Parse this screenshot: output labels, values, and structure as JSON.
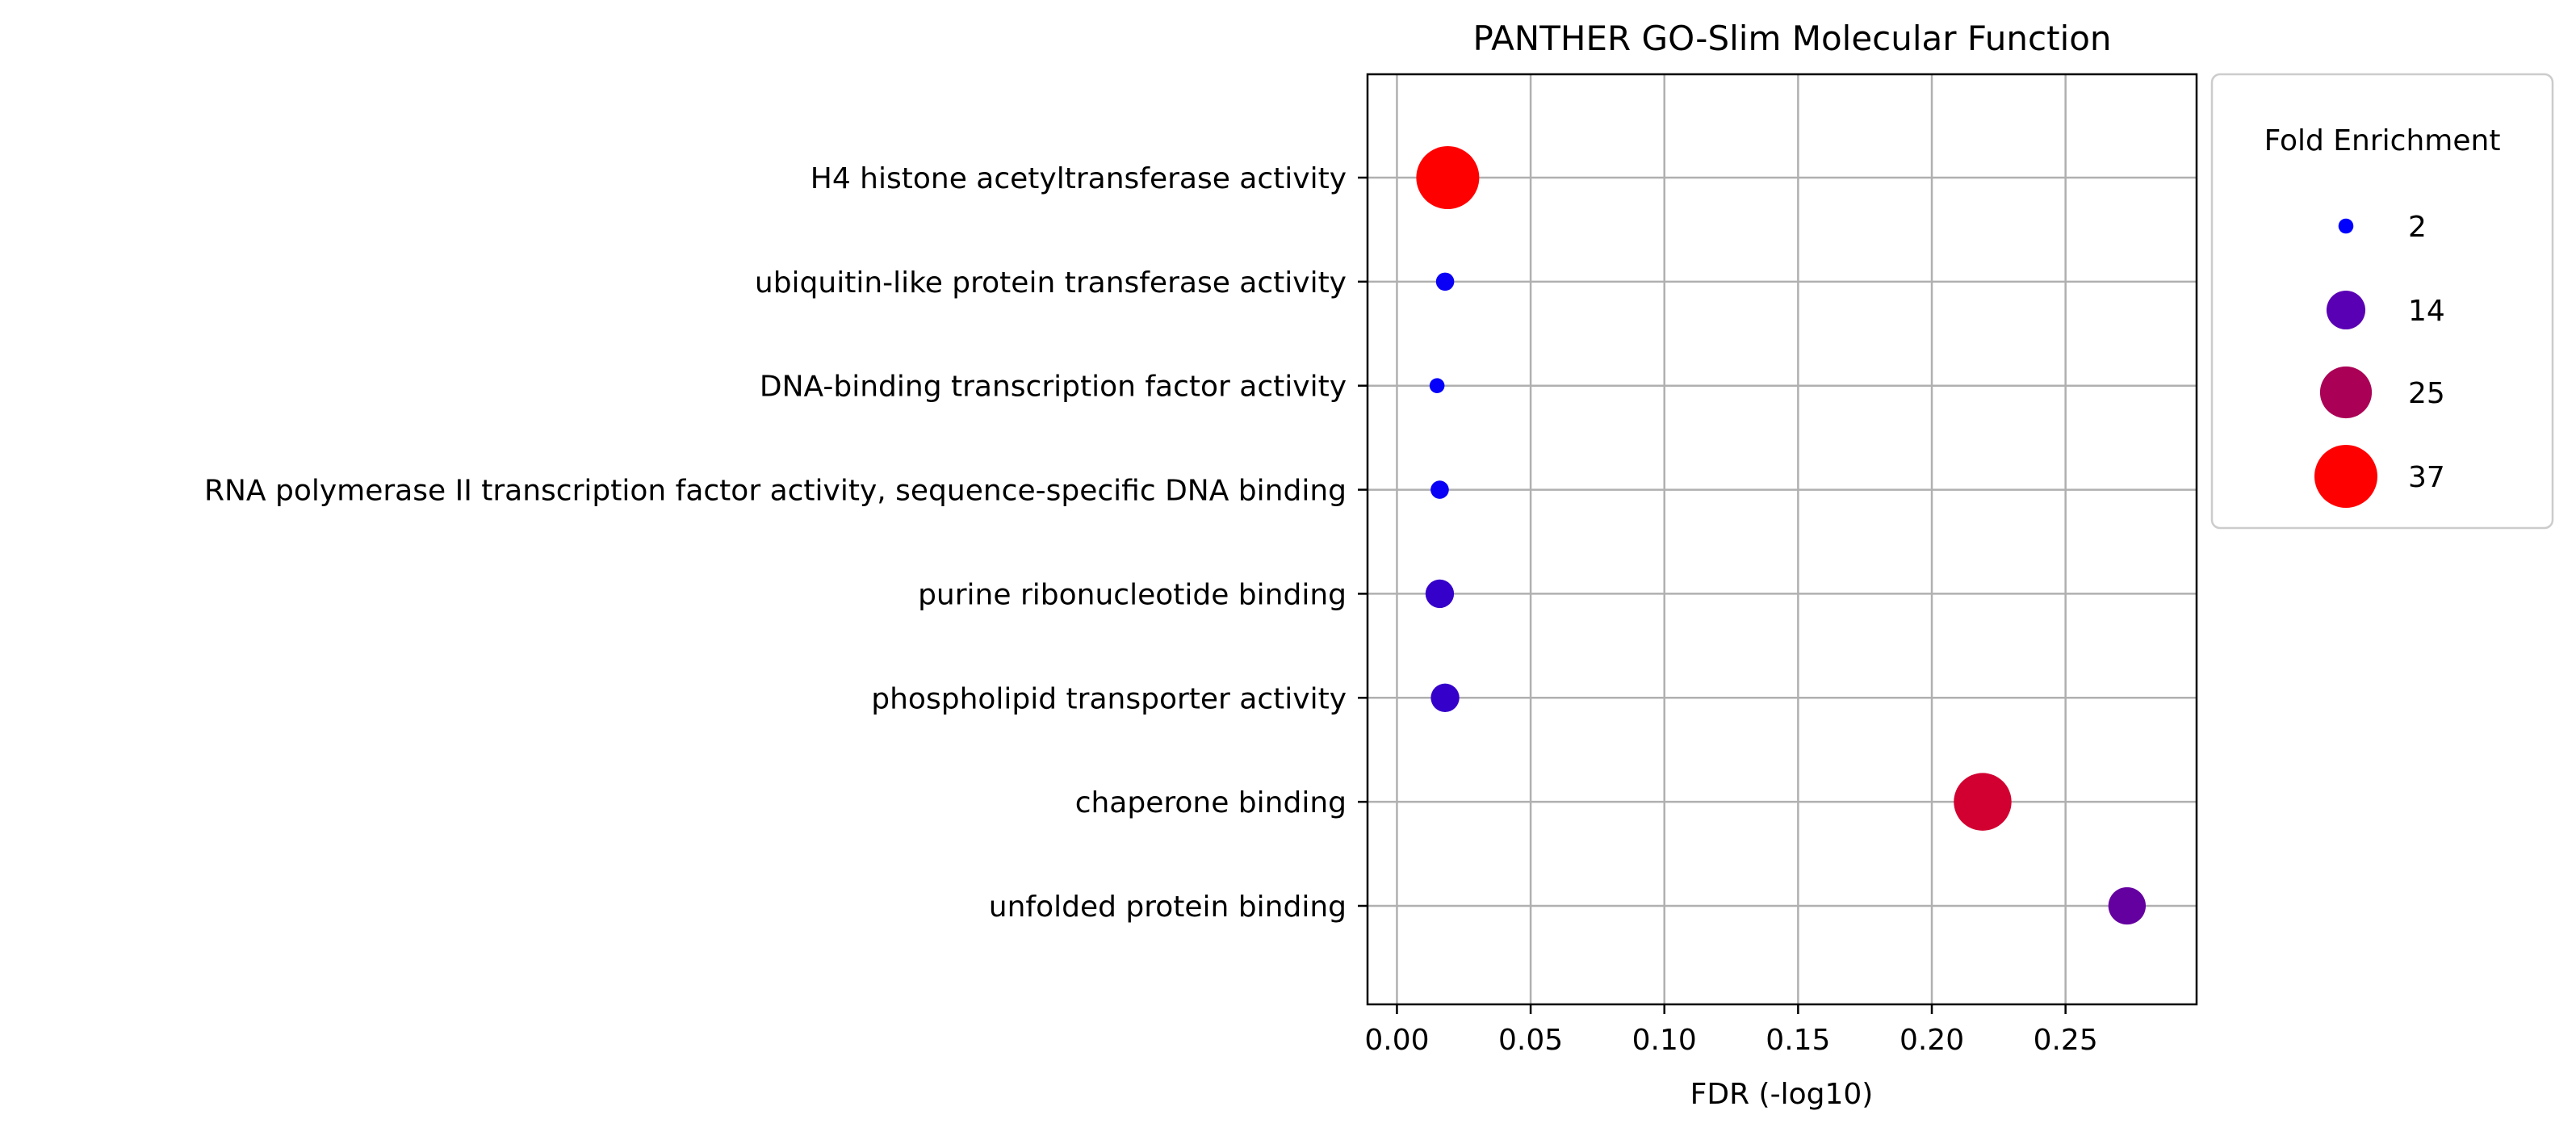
{
  "chart_data": {
    "type": "scatter",
    "title": "PANTHER GO-Slim Molecular Function",
    "xlabel": "FDR (-log10)",
    "ylabel": "",
    "xlim": [
      -0.011,
      0.299
    ],
    "xticks": [
      "0.00",
      "0.05",
      "0.10",
      "0.15",
      "0.20",
      "0.25"
    ],
    "grid": true,
    "categories": [
      "H4 histone acetyltransferase activity",
      "ubiquitin-like protein transferase activity",
      "DNA-binding transcription factor activity",
      "RNA polymerase II transcription factor activity, sequence-specific DNA binding",
      "purine ribonucleotide binding",
      "phospholipid transporter activity",
      "chaperone binding",
      "unfolded protein binding"
    ],
    "points": [
      {
        "category": "H4 histone acetyltransferase activity",
        "x": 0.019,
        "fold_enrichment": 37.0,
        "color": "#ff0000"
      },
      {
        "category": "ubiquitin-like protein transferase activity",
        "x": 0.018,
        "fold_enrichment": 3.0,
        "color": "#0a00f5"
      },
      {
        "category": "DNA-binding transcription factor activity",
        "x": 0.015,
        "fold_enrichment": 2.0,
        "color": "#0500fa"
      },
      {
        "category": "RNA polymerase II transcription factor activity, sequence-specific DNA binding",
        "x": 0.016,
        "fold_enrichment": 3.0,
        "color": "#0a00f5"
      },
      {
        "category": "purine ribonucleotide binding",
        "x": 0.016,
        "fold_enrichment": 7.5,
        "color": "#3500ca"
      },
      {
        "category": "phospholipid transporter activity",
        "x": 0.018,
        "fold_enrichment": 7.5,
        "color": "#3500ca"
      },
      {
        "category": "chaperone binding",
        "x": 0.219,
        "fold_enrichment": 31.0,
        "color": "#d20030"
      },
      {
        "category": "unfolded protein binding",
        "x": 0.273,
        "fold_enrichment": 13.0,
        "color": "#6500a0"
      }
    ],
    "legend": {
      "title": "Fold Enrichment",
      "placement": "outside-right",
      "entries": [
        {
          "label": "2",
          "value": 2,
          "color": "#0000ff"
        },
        {
          "label": "14",
          "value": 14,
          "color": "#5a00b4"
        },
        {
          "label": "25",
          "value": 25,
          "color": "#aa0055"
        },
        {
          "label": "37",
          "value": 37,
          "color": "#ff0000"
        }
      ]
    }
  }
}
